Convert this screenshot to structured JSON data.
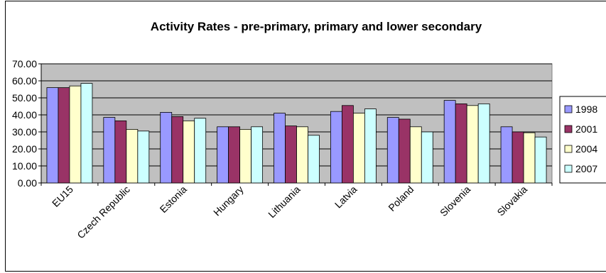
{
  "chart_data": {
    "type": "bar",
    "title": "Activity Rates - pre-primary, primary and lower secondary",
    "xlabel": "",
    "ylabel": "",
    "ylim": [
      0,
      70
    ],
    "ytick_step": 10,
    "ytick_labels": [
      "0.00",
      "10.00",
      "20.00",
      "30.00",
      "40.00",
      "50.00",
      "60.00",
      "70.00"
    ],
    "grid": true,
    "legend_position": "right",
    "categories": [
      "EU15",
      "Czech Republic",
      "Estonia",
      "Hungary",
      "Lithuania",
      "Latvia",
      "Poland",
      "Slovenia",
      "Slovakia"
    ],
    "series": [
      {
        "name": "1998",
        "color": "#9999FF",
        "values": [
          56.0,
          38.5,
          41.5,
          33.0,
          41.0,
          42.0,
          38.5,
          48.5,
          33.0
        ]
      },
      {
        "name": "2001",
        "color": "#993366",
        "values": [
          56.0,
          36.5,
          39.0,
          33.0,
          33.5,
          45.5,
          37.5,
          46.5,
          30.0
        ]
      },
      {
        "name": "2004",
        "color": "#FFFFCC",
        "values": [
          57.0,
          31.5,
          36.5,
          31.5,
          33.0,
          41.0,
          33.0,
          45.5,
          29.5
        ]
      },
      {
        "name": "2007",
        "color": "#CCFFFF",
        "values": [
          58.5,
          30.5,
          38.0,
          33.0,
          28.0,
          43.5,
          30.0,
          46.5,
          27.0
        ]
      }
    ],
    "plot_area_color": "#C0C0C0",
    "gridline_color": "#000000"
  }
}
